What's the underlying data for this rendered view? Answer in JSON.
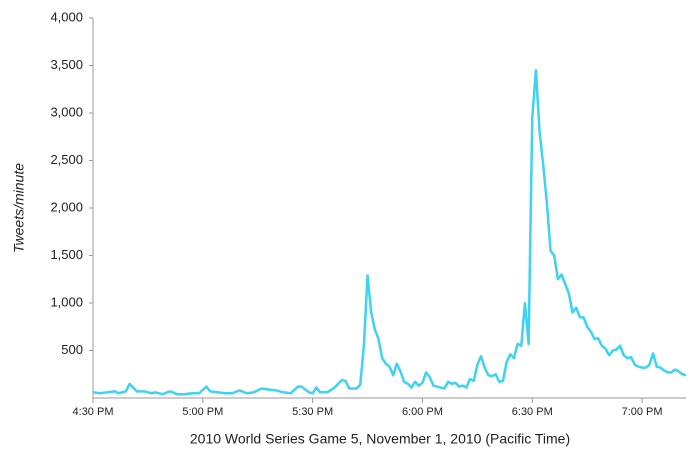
{
  "chart_data": {
    "type": "line",
    "x_axis_label": "2010 World Series Game 5, November 1, 2010 (Pacific Time)",
    "y_axis_label": "Tweets/minute",
    "color": "#3dd3f2",
    "x": [
      "16:30",
      "16:32",
      "16:34",
      "16:36",
      "16:37",
      "16:39",
      "16:40",
      "16:42",
      "16:44",
      "16:46",
      "16:47",
      "16:49",
      "16:51",
      "16:53",
      "16:55",
      "16:57",
      "16:59",
      "17:01",
      "17:02",
      "17:04",
      "17:06",
      "17:08",
      "17:10",
      "17:12",
      "17:14",
      "17:16",
      "17:18",
      "17:20",
      "17:22",
      "17:24",
      "17:26",
      "17:27",
      "17:29",
      "17:30",
      "17:31",
      "17:32",
      "17:34",
      "17:36",
      "17:38",
      "17:39",
      "17:40",
      "17:42",
      "17:43",
      "17:44",
      "17:45",
      "17:46",
      "17:47",
      "17:48",
      "17:49",
      "17:50",
      "17:51",
      "17:52",
      "17:53",
      "17:54",
      "17:55",
      "17:56",
      "17:57",
      "17:58",
      "17:59",
      "18:00",
      "18:01",
      "18:02",
      "18:03",
      "18:05",
      "18:06",
      "18:07",
      "18:08",
      "18:09",
      "18:10",
      "18:11",
      "18:12",
      "18:13",
      "18:14",
      "18:15",
      "18:16",
      "18:17",
      "18:18",
      "18:19",
      "18:20",
      "18:21",
      "18:22",
      "18:23",
      "18:24",
      "18:25",
      "18:26",
      "18:27",
      "18:28",
      "18:29",
      "18:30",
      "18:31",
      "18:32",
      "18:33",
      "18:34",
      "18:35",
      "18:36",
      "18:37",
      "18:38",
      "18:39",
      "18:40",
      "18:41",
      "18:42",
      "18:43",
      "18:44",
      "18:45",
      "18:46",
      "18:47",
      "18:48",
      "18:49",
      "18:50",
      "18:51",
      "18:52",
      "18:53",
      "18:54",
      "18:55",
      "18:56",
      "18:57",
      "18:58",
      "18:59",
      "19:00",
      "19:01",
      "19:02",
      "19:03",
      "19:04",
      "19:05",
      "19:06",
      "19:07",
      "19:08",
      "19:09",
      "19:10",
      "19:11",
      "19:12"
    ],
    "values": [
      60,
      50,
      60,
      70,
      50,
      70,
      150,
      70,
      70,
      50,
      60,
      40,
      70,
      40,
      40,
      50,
      50,
      120,
      70,
      60,
      50,
      50,
      80,
      50,
      60,
      100,
      90,
      80,
      60,
      50,
      120,
      120,
      60,
      50,
      110,
      60,
      60,
      110,
      190,
      180,
      100,
      100,
      140,
      550,
      1290,
      900,
      720,
      620,
      420,
      360,
      330,
      240,
      360,
      280,
      170,
      150,
      110,
      170,
      130,
      160,
      270,
      220,
      130,
      110,
      100,
      170,
      150,
      160,
      120,
      130,
      110,
      200,
      180,
      350,
      440,
      320,
      240,
      230,
      250,
      170,
      180,
      380,
      460,
      420,
      570,
      550,
      1000,
      570,
      2950,
      3450,
      2800,
      2450,
      2050,
      1550,
      1500,
      1250,
      1300,
      1200,
      1100,
      900,
      950,
      850,
      850,
      750,
      700,
      620,
      630,
      550,
      520,
      450,
      500,
      510,
      550,
      450,
      420,
      430,
      350,
      330,
      320,
      320,
      350,
      470,
      330,
      320,
      290,
      270,
      270,
      300,
      280,
      250,
      240
    ],
    "xlim": [
      "16:30",
      "19:12"
    ],
    "xticks": [
      {
        "value": "16:30",
        "label": "4:30 PM"
      },
      {
        "value": "17:00",
        "label": "5:00 PM"
      },
      {
        "value": "17:30",
        "label": "5:30 PM"
      },
      {
        "value": "18:00",
        "label": "6:00 PM"
      },
      {
        "value": "18:30",
        "label": "6:30 PM"
      },
      {
        "value": "19:00",
        "label": "7:00 PM"
      }
    ],
    "ylim": [
      0,
      4000
    ],
    "yticks": [
      500,
      {
        "value": 1000,
        "label": "1,000"
      },
      {
        "value": 1500,
        "label": "1,500"
      },
      {
        "value": 2000,
        "label": "2,000"
      },
      {
        "value": 2500,
        "label": "2,500"
      },
      {
        "value": 3000,
        "label": "3,000"
      },
      {
        "value": 3500,
        "label": "3,500"
      },
      {
        "value": 4000,
        "label": "4,000"
      }
    ]
  }
}
